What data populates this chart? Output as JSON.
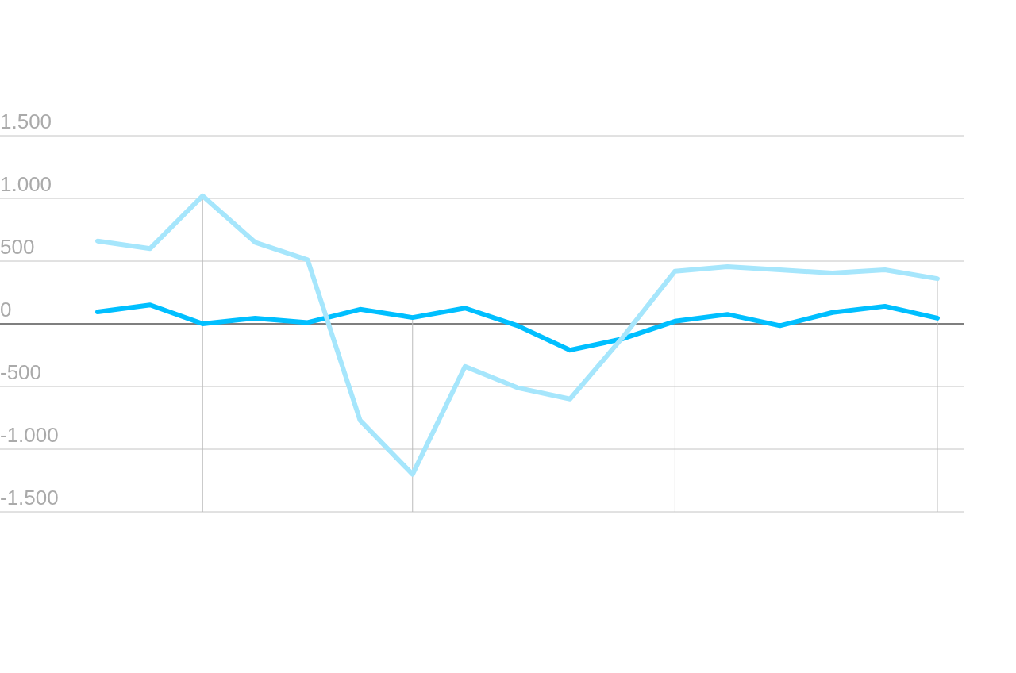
{
  "chart_data": {
    "type": "line",
    "categories": [
      null,
      null,
      null,
      null,
      null,
      null,
      null,
      null,
      null,
      null,
      null,
      null,
      null,
      null,
      null,
      null,
      null
    ],
    "series": [
      {
        "color": "#00bfff",
        "values": [
          95,
          150,
          0,
          45,
          10,
          115,
          50,
          125,
          -15,
          -210,
          -120,
          20,
          75,
          -15,
          90,
          140,
          45
        ]
      },
      {
        "color": "#a6e6fc",
        "values": [
          660,
          600,
          1020,
          650,
          510,
          -770,
          -1200,
          -340,
          -510,
          -600,
          -110,
          420,
          455,
          430,
          405,
          430,
          360
        ]
      }
    ],
    "ylim": [
      -1500,
      1500
    ],
    "yticks": [
      {
        "value": -1500,
        "label": "-1.500"
      },
      {
        "value": -1000,
        "label": "-1.000"
      },
      -500,
      0,
      500,
      {
        "value": 1000,
        "label": "1.000"
      },
      {
        "value": 1500,
        "label": "1.500"
      }
    ],
    "grid": "y",
    "tick_labels": "y",
    "marker": "none",
    "line_style": "solid"
  }
}
